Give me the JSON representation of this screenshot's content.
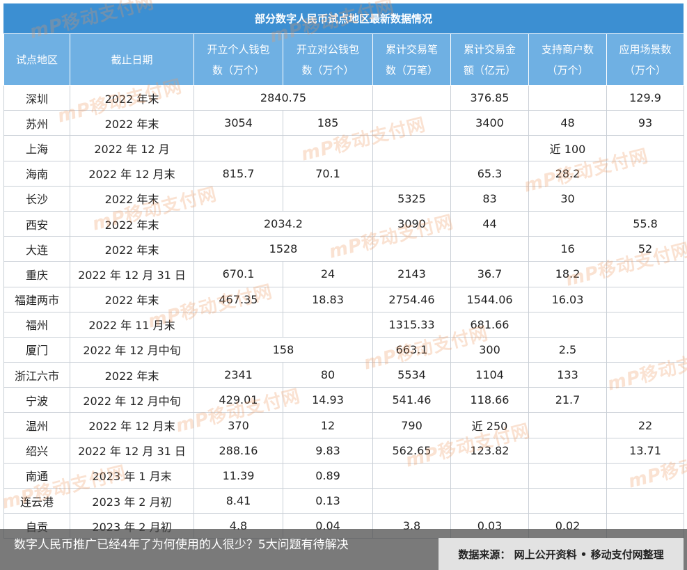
{
  "title": "部分数字人民币试点地区最新数据情况",
  "headers": {
    "region": "试点地区",
    "date": "截止日期",
    "personal_wallets": [
      "开立个人钱包",
      "数（万个）"
    ],
    "corporate_wallets": [
      "开立对公钱包",
      "数（万个）"
    ],
    "txn_count": [
      "累计交易笔",
      "数（万笔）"
    ],
    "txn_amount": [
      "累计交易金",
      "额（亿元）"
    ],
    "merchants": [
      "支持商户数",
      "（万个）"
    ],
    "scenarios": [
      "应用场景数",
      "（万个）"
    ]
  },
  "rows": [
    {
      "region": "深圳",
      "date": "2022 年末",
      "wallets_combined": "2840.75",
      "txn_count": "",
      "txn_amount": "376.85",
      "merchants": "",
      "scenarios": "129.9"
    },
    {
      "region": "苏州",
      "date": "2022 年末",
      "personal": "3054",
      "corporate": "185",
      "txn_count": "",
      "txn_amount": "3400",
      "merchants": "48",
      "scenarios": "93"
    },
    {
      "region": "上海",
      "date": "2022 年 12 月",
      "personal": "",
      "corporate": "",
      "txn_count": "",
      "txn_amount": "",
      "merchants": "近 100",
      "scenarios": ""
    },
    {
      "region": "海南",
      "date": "2022 年 12 月末",
      "personal": "815.7",
      "corporate": "70.1",
      "txn_count": "",
      "txn_amount": "65.3",
      "merchants": "28.2",
      "scenarios": ""
    },
    {
      "region": "长沙",
      "date": "2022 年末",
      "personal": "",
      "corporate": "",
      "txn_count": "5325",
      "txn_amount": "83",
      "merchants": "30",
      "scenarios": ""
    },
    {
      "region": "西安",
      "date": "2022 年末",
      "wallets_combined": "2034.2",
      "txn_count": "3090",
      "txn_amount": "44",
      "merchants": "",
      "scenarios": "55.8"
    },
    {
      "region": "大连",
      "date": "2022 年末",
      "wallets_combined": "1528",
      "txn_count": "",
      "txn_amount": "",
      "merchants": "16",
      "scenarios": "52"
    },
    {
      "region": "重庆",
      "date": "2022 年 12 月 31 日",
      "personal": "670.1",
      "corporate": "24",
      "txn_count": "2143",
      "txn_amount": "36.7",
      "merchants": "18.2",
      "scenarios": ""
    },
    {
      "region": "福建两市",
      "date": "2022 年末",
      "personal": "467.35",
      "corporate": "18.83",
      "txn_count": "2754.46",
      "txn_amount": "1544.06",
      "merchants": "16.03",
      "scenarios": ""
    },
    {
      "region": "福州",
      "date": "2022 年 11 月末",
      "personal": "",
      "corporate": "",
      "txn_count": "1315.33",
      "txn_amount": "681.66",
      "merchants": "",
      "scenarios": ""
    },
    {
      "region": "厦门",
      "date": "2022 年 12 月中旬",
      "wallets_combined": "158",
      "txn_count": "663.1",
      "txn_amount": "300",
      "merchants": "2.5",
      "scenarios": ""
    },
    {
      "region": "浙江六市",
      "date": "2022 年末",
      "personal": "2341",
      "corporate": "80",
      "txn_count": "5534",
      "txn_amount": "1104",
      "merchants": "133",
      "scenarios": ""
    },
    {
      "region": "宁波",
      "date": "2022 年 12 月中旬",
      "personal": "429.01",
      "corporate": "14.93",
      "txn_count": "541.46",
      "txn_amount": "118.66",
      "merchants": "21.7",
      "scenarios": ""
    },
    {
      "region": "温州",
      "date": "2022 年 12 月末",
      "personal": "370",
      "corporate": "12",
      "txn_count": "790",
      "txn_amount": "近 250",
      "merchants": "",
      "scenarios": "22"
    },
    {
      "region": "绍兴",
      "date": "2022 年 12 月 31 日",
      "personal": "288.16",
      "corporate": "9.83",
      "txn_count": "562.65",
      "txn_amount": "123.82",
      "merchants": "",
      "scenarios": "13.71"
    },
    {
      "region": "南通",
      "date": "2023 年 1 月末",
      "personal": "11.39",
      "corporate": "0.89",
      "txn_count": "",
      "txn_amount": "",
      "merchants": "",
      "scenarios": ""
    },
    {
      "region": "连云港",
      "date": "2023 年 2 月初",
      "personal": "8.41",
      "corporate": "0.13",
      "txn_count": "",
      "txn_amount": "",
      "merchants": "",
      "scenarios": ""
    },
    {
      "region": "自贡",
      "date": "2023 年 2 月初",
      "personal": "4.8",
      "corporate": "0.04",
      "txn_count": "3.8",
      "txn_amount": "0.03",
      "merchants": "0.02",
      "scenarios": ""
    }
  ],
  "watermark": {
    "logo": "mP",
    "text": "移动支付网"
  },
  "caption": "数字人民币推广已经4年了为何使用的人很少？5大问题有待解决",
  "source": "数据来源：  网上公开资料  •  移动支付网整理",
  "colors": {
    "title_bg": "#3c8fd2",
    "header_bg": "#6fb0e3",
    "border": "#c9cfd6",
    "watermark": "#ee965f"
  }
}
